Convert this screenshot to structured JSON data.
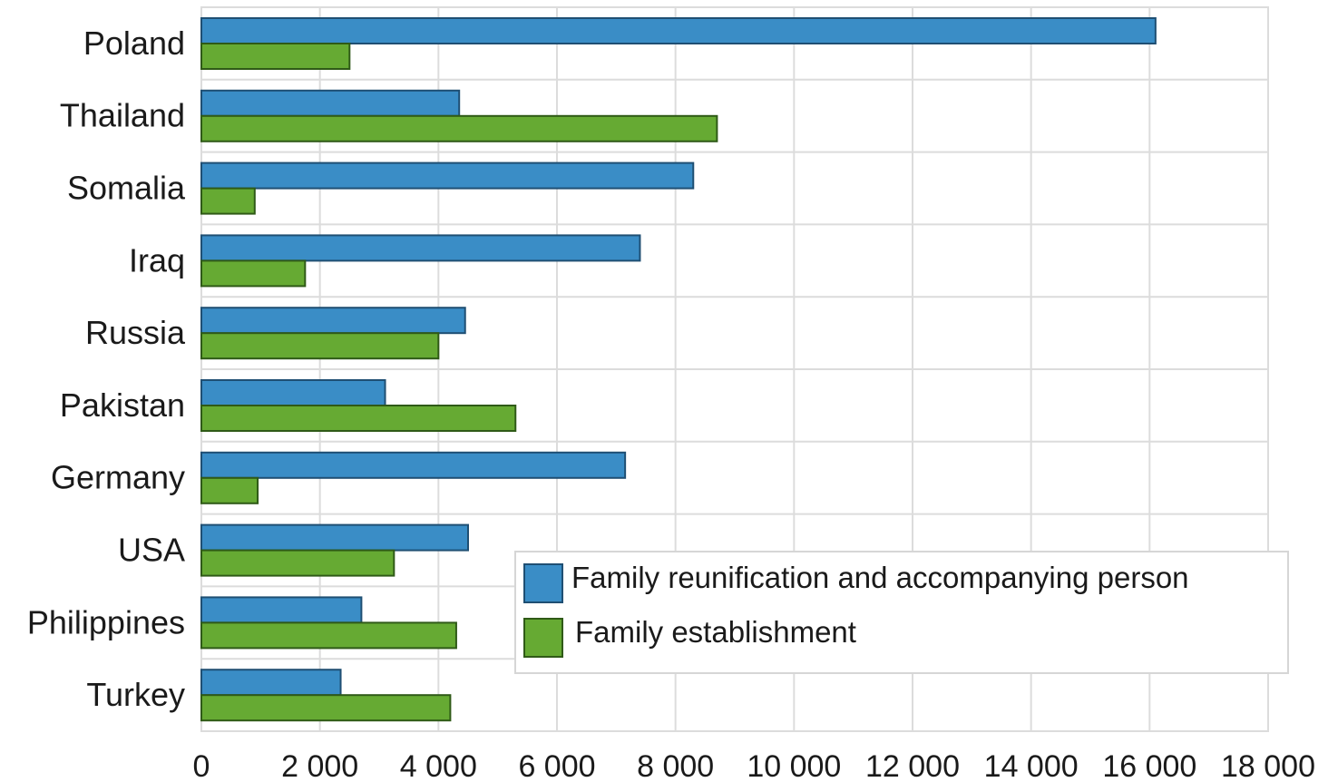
{
  "chart_data": {
    "type": "bar",
    "orientation": "horizontal",
    "title": "",
    "xlabel": "",
    "ylabel": "",
    "categories": [
      "Poland",
      "Thailand",
      "Somalia",
      "Iraq",
      "Russia",
      "Pakistan",
      "Germany",
      "USA",
      "Philippines",
      "Turkey"
    ],
    "series": [
      {
        "name": "Family reunification and accompanying person",
        "color": "#3a8dc6",
        "values": [
          16100,
          4350,
          8300,
          7400,
          4450,
          3100,
          7150,
          4500,
          2700,
          2350
        ]
      },
      {
        "name": "Family establishment",
        "color": "#66aa33",
        "values": [
          2500,
          8700,
          900,
          1750,
          4000,
          5300,
          950,
          3250,
          4300,
          4200
        ]
      }
    ],
    "xlim": [
      0,
      18000
    ],
    "xticks": [
      0,
      2000,
      4000,
      6000,
      8000,
      10000,
      12000,
      14000,
      16000,
      18000
    ],
    "xtick_labels": [
      "0",
      "2 000",
      "4 000",
      "6 000",
      "8 000",
      "10 000",
      "12 000",
      "14 000",
      "16 000",
      "18 000"
    ],
    "grid": true,
    "legend_position": "bottom-right"
  }
}
